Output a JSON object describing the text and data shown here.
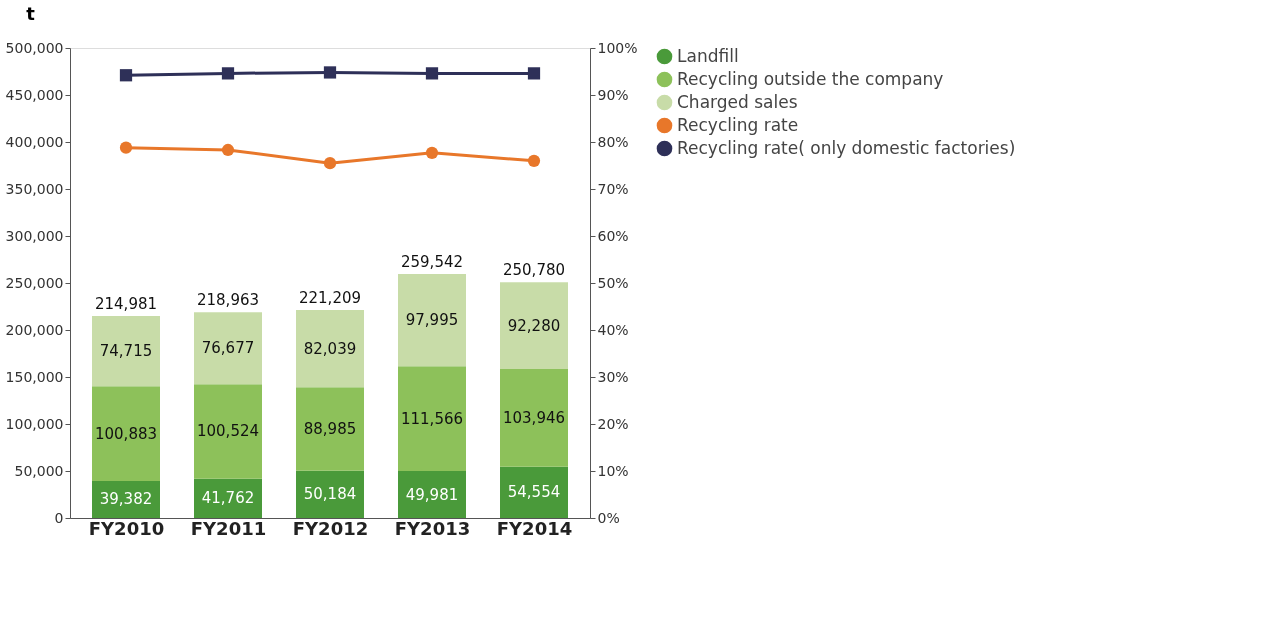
{
  "chart_data": {
    "type": "bar",
    "stacked": true,
    "ylabel": "t",
    "categories": [
      "FY2010",
      "FY2011",
      "FY2012",
      "FY2013",
      "FY2014"
    ],
    "series": [
      {
        "name": "Landfill",
        "color": "#4a9a3a",
        "values": [
          39382,
          41762,
          50184,
          49981,
          54554
        ],
        "value_labels": [
          "39,382",
          "41,762",
          "50,184",
          "49,981",
          "54,554"
        ]
      },
      {
        "name": "Recycling outside the company",
        "color": "#8dc15a",
        "values": [
          100883,
          100524,
          88985,
          111566,
          103946
        ],
        "value_labels": [
          "100,883",
          "100,524",
          "88,985",
          "111,566",
          "103,946"
        ]
      },
      {
        "name": "Charged sales",
        "color": "#c8dca8",
        "values": [
          74715,
          76677,
          82039,
          97995,
          92280
        ],
        "value_labels": [
          "74,715",
          "76,677",
          "82,039",
          "97,995",
          "92,280"
        ]
      },
      {
        "name": "Recycling rate",
        "type": "line",
        "axis": "y2",
        "marker": "circle",
        "color": "#e8772a",
        "values": [
          78.8,
          78.3,
          75.5,
          77.7,
          76.0
        ]
      },
      {
        "name": "Recycling rate( only domestic factories)",
        "type": "line",
        "axis": "y2",
        "marker": "square",
        "color": "#2e3058",
        "values": [
          94.2,
          94.6,
          94.8,
          94.6,
          94.6
        ]
      }
    ],
    "totals": [
      "214,981",
      "218,963",
      "221,209",
      "259,542",
      "250,780"
    ],
    "ylim": [
      0,
      500000
    ],
    "yticks": [
      {
        "value": 0,
        "label": "0"
      },
      {
        "value": 50000,
        "label": "50,000"
      },
      {
        "value": 100000,
        "label": "100,000"
      },
      {
        "value": 150000,
        "label": "150,000"
      },
      {
        "value": 200000,
        "label": "200,000"
      },
      {
        "value": 250000,
        "label": "250,000"
      },
      {
        "value": 300000,
        "label": "300,000"
      },
      {
        "value": 350000,
        "label": "350,000"
      },
      {
        "value": 400000,
        "label": "400,000"
      },
      {
        "value": 450000,
        "label": "450,000"
      },
      {
        "value": 500000,
        "label": "500,000"
      }
    ],
    "y2lim": [
      0,
      100
    ],
    "y2ticks": [
      {
        "value": 0,
        "label": "0%"
      },
      {
        "value": 10,
        "label": "10%"
      },
      {
        "value": 20,
        "label": "20%"
      },
      {
        "value": 30,
        "label": "30%"
      },
      {
        "value": 40,
        "label": "40%"
      },
      {
        "value": 50,
        "label": "50%"
      },
      {
        "value": 60,
        "label": "60%"
      },
      {
        "value": 70,
        "label": "70%"
      },
      {
        "value": 80,
        "label": "80%"
      },
      {
        "value": 90,
        "label": "90%"
      },
      {
        "value": 100,
        "label": "100%"
      }
    ],
    "grid": false,
    "legend": "right"
  }
}
